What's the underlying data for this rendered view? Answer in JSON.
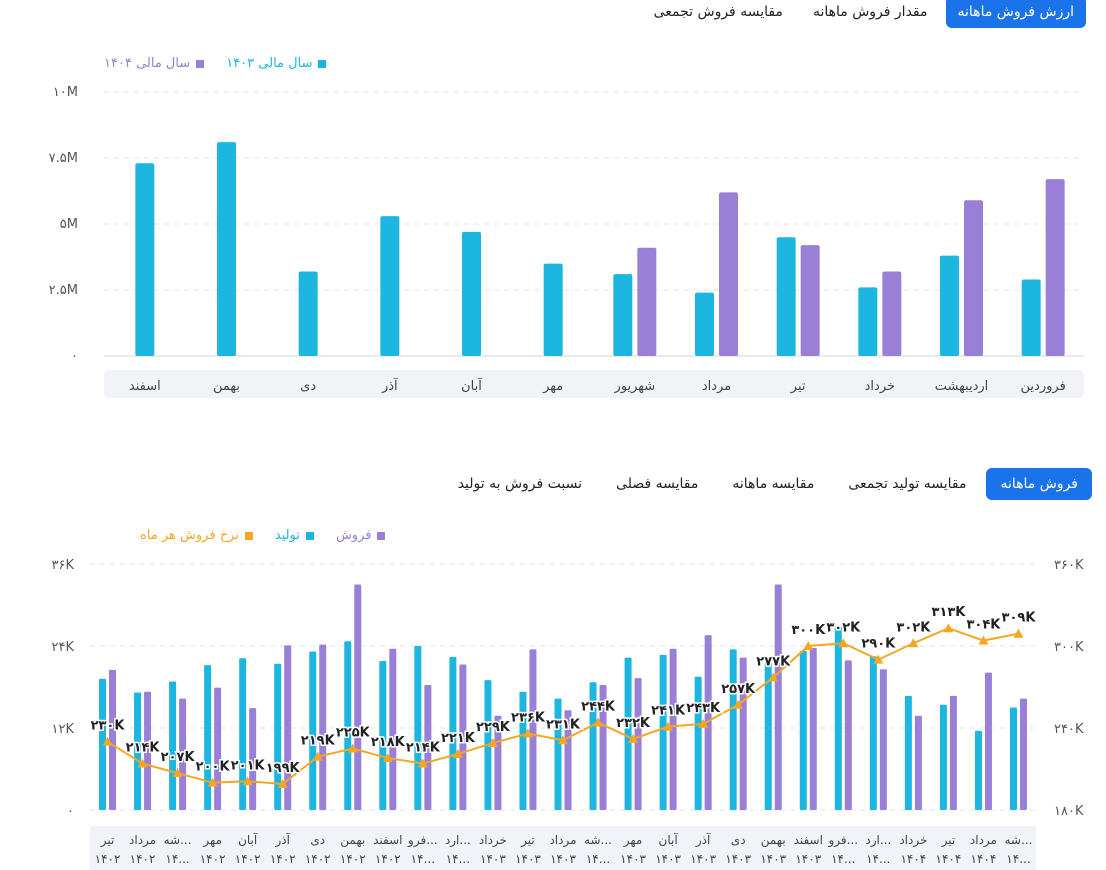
{
  "top_tabs": [
    {
      "label": "ارزش فروش ماهانه",
      "active": true
    },
    {
      "label": "مقدار فروش ماهانه",
      "active": false
    },
    {
      "label": "مقایسه فروش تجمعی",
      "active": false
    }
  ],
  "bottom_tabs": [
    {
      "label": "فروش ماهانه",
      "active": true
    },
    {
      "label": "مقایسه تولید تجمعی",
      "active": false
    },
    {
      "label": "مقایسه ماهانه",
      "active": false
    },
    {
      "label": "مقایسه فصلی",
      "active": false
    },
    {
      "label": "نسبت فروش به تولید",
      "active": false
    }
  ],
  "colors": {
    "cyan": "#1cb6e0",
    "purple": "#9a7fd6",
    "orange": "#f5a623",
    "accent": "#1a73e8"
  },
  "chart_data": [
    {
      "type": "bar",
      "categories": [
        "فروردین",
        "اردیبهشت",
        "خرداد",
        "تیر",
        "مرداد",
        "شهریور",
        "مهر",
        "آبان",
        "آذر",
        "دی",
        "بهمن",
        "اسفند"
      ],
      "series": [
        {
          "name": "سال مالی ۱۴۰۳",
          "color": "#1cb6e0",
          "values": [
            2.9,
            3.8,
            2.6,
            4.5,
            2.4,
            3.1,
            3.5,
            4.7,
            5.3,
            3.2,
            8.1,
            7.3
          ]
        },
        {
          "name": "سال مالی ۱۴۰۴",
          "color": "#9a7fd6",
          "values": [
            6.7,
            5.9,
            3.2,
            4.2,
            6.2,
            4.1,
            null,
            null,
            null,
            null,
            null,
            null
          ]
        }
      ],
      "yticks": [
        "۰",
        "۲.۵M",
        "۵M",
        "۷.۵M",
        "۱۰M"
      ],
      "ylim": [
        0,
        10
      ],
      "legend_position": "top-left",
      "x_reversed": true
    },
    {
      "type": "bar+line",
      "categories": [
        [
          "تیر",
          "۱۴۰۲"
        ],
        [
          "مرداد",
          "۱۴۰۲"
        ],
        [
          "شه...",
          "۱۴..."
        ],
        [
          "مهر",
          "۱۴۰۲"
        ],
        [
          "آبان",
          "۱۴۰۲"
        ],
        [
          "آذر",
          "۱۴۰۲"
        ],
        [
          "دی",
          "۱۴۰۲"
        ],
        [
          "بهمن",
          "۱۴۰۲"
        ],
        [
          "اسفند",
          "۱۴۰۲"
        ],
        [
          "فرو...",
          "۱۴..."
        ],
        [
          "ارد...",
          "۱۴..."
        ],
        [
          "خرداد",
          "۱۴۰۳"
        ],
        [
          "تیر",
          "۱۴۰۳"
        ],
        [
          "مرداد",
          "۱۴۰۳"
        ],
        [
          "شه...",
          "۱۴..."
        ],
        [
          "مهر",
          "۱۴۰۳"
        ],
        [
          "آبان",
          "۱۴۰۳"
        ],
        [
          "آذر",
          "۱۴۰۳"
        ],
        [
          "دی",
          "۱۴۰۳"
        ],
        [
          "بهمن",
          "۱۴۰۳"
        ],
        [
          "اسفند",
          "۱۴۰۳"
        ],
        [
          "فرو...",
          "۱۴..."
        ],
        [
          "ارد...",
          "۱۴..."
        ],
        [
          "خرداد",
          "۱۴۰۴"
        ],
        [
          "تیر",
          "۱۴۰۴"
        ],
        [
          "مرداد",
          "۱۴۰۴"
        ],
        [
          "شه...",
          "۱۴..."
        ]
      ],
      "series": [
        {
          "name": "تولید",
          "color": "#1cb6e0",
          "axis": "left",
          "values": [
            19.2,
            17.2,
            18.8,
            21.2,
            22.2,
            21.4,
            23.2,
            24.7,
            21.8,
            24.0,
            22.4,
            19.0,
            17.3,
            16.3,
            18.7,
            22.3,
            22.7,
            19.5,
            23.5,
            22.0,
            23.3,
            26.8,
            22.5,
            16.7,
            15.4,
            11.6,
            15.0
          ]
        },
        {
          "name": "فروش",
          "color": "#9a7fd6",
          "axis": "left",
          "values": [
            20.5,
            17.3,
            16.3,
            17.9,
            14.9,
            24.1,
            24.2,
            33.0,
            23.6,
            18.3,
            21.3,
            13.8,
            23.5,
            14.6,
            18.3,
            19.3,
            23.6,
            25.6,
            22.3,
            33.0,
            23.7,
            21.9,
            20.6,
            13.8,
            16.7,
            20.1,
            16.3
          ]
        },
        {
          "name": "نرخ فروش هر ماه",
          "color": "#f5a623",
          "axis": "right",
          "values": [
            230,
            214,
            207,
            200,
            201,
            199,
            219,
            225,
            218,
            214,
            221,
            229,
            236,
            231,
            244,
            232,
            241,
            243,
            257,
            277,
            300,
            302,
            290,
            302,
            313,
            304,
            309
          ],
          "labels": [
            "۲۳۰K",
            "۲۱۴K",
            "۲۰۷K",
            "۲۰۰K",
            "۲۰۱K",
            "۱۹۹K",
            "۲۱۹K",
            "۲۲۵K",
            "۲۱۸K",
            "۲۱۴K",
            "۲۲۱K",
            "۲۲۹K",
            "۲۳۶K",
            "۲۳۱K",
            "۲۴۴K",
            "۲۳۲K",
            "۲۴۱K",
            "۲۴۳K",
            "۲۵۷K",
            "۲۷۷K",
            "۳۰۰K",
            "۳۰۲K",
            "۲۹۰K",
            "۳۰۲K",
            "۳۱۳K",
            "۳۰۴K",
            "۳۰۹K"
          ]
        }
      ],
      "yticks_left": [
        "۰",
        "۱۲K",
        "۲۴K",
        "۳۶K"
      ],
      "ylim_left": [
        0,
        36
      ],
      "yticks_right": [
        "۱۸۰K",
        "۲۴۰K",
        "۳۰۰K",
        "۳۶۰K"
      ],
      "ylim_right": [
        180,
        360
      ],
      "legend_position": "top-left"
    }
  ]
}
